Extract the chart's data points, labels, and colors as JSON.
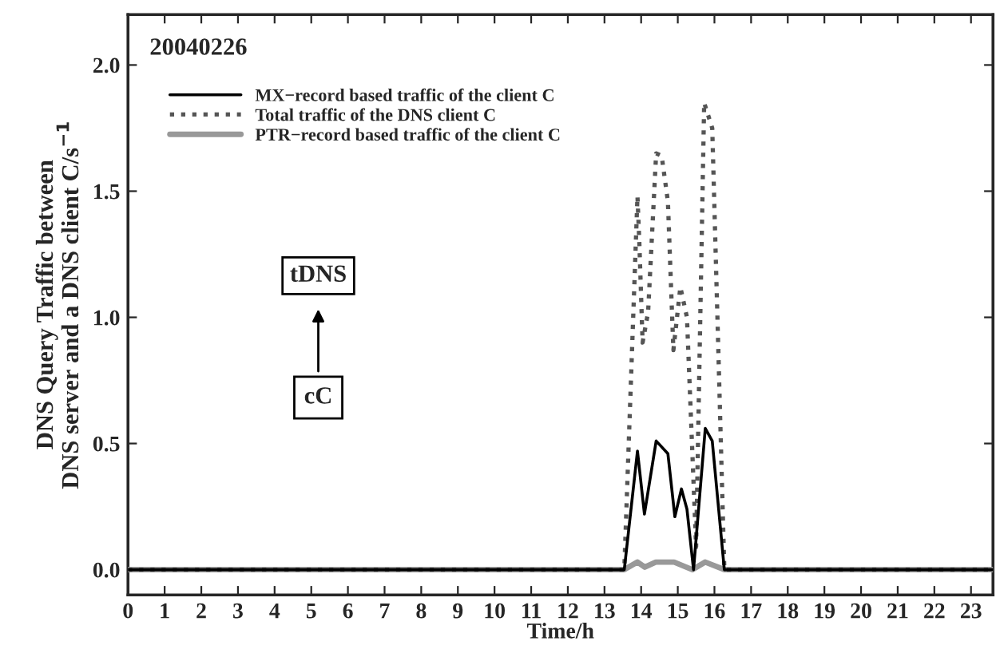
{
  "chart_data": {
    "type": "line",
    "xlabel": "Time/h",
    "ylabel": "DNS Query Traffic between\nDNS server and a DNS client C/s$^{−1}$",
    "annotations": [
      "20040226",
      "tDNS",
      "cC"
    ],
    "series": [
      {
        "name": "MX−record based traffic of the client C",
        "color": "#000000",
        "line_style": "solid",
        "x": [
          0,
          13.54,
          13.9,
          14.09,
          14.41,
          14.73,
          14.92,
          15.1,
          15.25,
          15.43,
          15.75,
          15.94,
          16.27,
          23.6
        ],
        "values": [
          0,
          0,
          0.47,
          0.22,
          0.51,
          0.46,
          0.21,
          0.32,
          0.24,
          0,
          0.56,
          0.51,
          0,
          0
        ]
      },
      {
        "name": "Total traffic of the DNS client C",
        "color": "#555555",
        "line_style": "dotted",
        "x": [
          0,
          13.54,
          13.9,
          13.95,
          14.04,
          14.19,
          14.41,
          14.56,
          14.73,
          14.88,
          15.07,
          15.25,
          15.5,
          15.72,
          15.94,
          16.27,
          23.6
        ],
        "values": [
          0,
          0,
          1.48,
          1.3,
          0.9,
          1.02,
          1.65,
          1.64,
          1.46,
          0.87,
          1.12,
          1.0,
          0.09,
          1.85,
          1.75,
          0,
          0
        ]
      },
      {
        "name": "PTR−record based traffic of the client C",
        "color": "#999999",
        "line_style": "solid",
        "x": [
          0,
          13.54,
          13.9,
          14.1,
          14.4,
          14.9,
          15.4,
          15.75,
          16.27,
          23.6
        ],
        "values": [
          0,
          0,
          0.03,
          0.01,
          0.03,
          0.03,
          0,
          0.03,
          0,
          0
        ]
      }
    ],
    "xlim": [
      0,
      23.6
    ],
    "xticks": [
      0,
      1,
      2,
      3,
      4,
      5,
      6,
      7,
      8,
      9,
      10,
      11,
      12,
      13,
      14,
      15,
      16,
      17,
      18,
      19,
      20,
      21,
      22,
      23
    ],
    "ylim": [
      -0.1,
      2.2
    ],
    "yticks": [
      {
        "value": 0,
        "label": "0.0"
      },
      {
        "value": 0.5,
        "label": "0.5"
      },
      {
        "value": 1,
        "label": "1.0"
      },
      {
        "value": 1.5,
        "label": "1.5"
      },
      {
        "value": 2,
        "label": "2.0"
      }
    ],
    "legend": "top left",
    "grid": false
  }
}
